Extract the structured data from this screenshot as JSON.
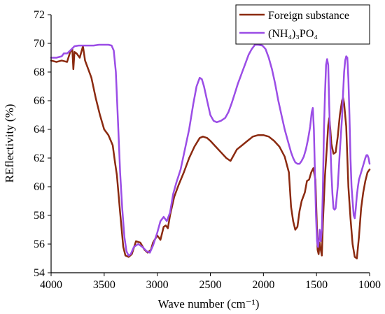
{
  "chart_data": {
    "type": "line",
    "xlabel": "Wave number (cm⁻¹)",
    "ylabel": "REflectivity (%)",
    "xlim": [
      4000,
      1000
    ],
    "ylim": [
      54,
      72
    ],
    "x_ticks": [
      4000,
      3500,
      3000,
      2500,
      2000,
      1500,
      1000
    ],
    "y_ticks": [
      54,
      56,
      58,
      60,
      62,
      64,
      66,
      68,
      70,
      72
    ],
    "grid": false,
    "legend_position": "top-right",
    "series": [
      {
        "name": "Foreign substance",
        "color": "#8b2a10",
        "points": [
          [
            4000,
            68.8
          ],
          [
            3950,
            68.7
          ],
          [
            3900,
            68.8
          ],
          [
            3850,
            68.7
          ],
          [
            3820,
            69.4
          ],
          [
            3800,
            69.6
          ],
          [
            3790,
            68.2
          ],
          [
            3780,
            69.4
          ],
          [
            3760,
            69.3
          ],
          [
            3730,
            69.0
          ],
          [
            3700,
            69.8
          ],
          [
            3680,
            68.8
          ],
          [
            3650,
            68.2
          ],
          [
            3620,
            67.6
          ],
          [
            3580,
            66.2
          ],
          [
            3540,
            65.0
          ],
          [
            3500,
            64.0
          ],
          [
            3460,
            63.6
          ],
          [
            3420,
            62.9
          ],
          [
            3400,
            61.8
          ],
          [
            3380,
            60.8
          ],
          [
            3350,
            58.2
          ],
          [
            3320,
            55.8
          ],
          [
            3300,
            55.2
          ],
          [
            3270,
            55.1
          ],
          [
            3240,
            55.3
          ],
          [
            3200,
            56.2
          ],
          [
            3160,
            56.1
          ],
          [
            3120,
            55.6
          ],
          [
            3090,
            55.4
          ],
          [
            3060,
            55.6
          ],
          [
            3040,
            56.1
          ],
          [
            3000,
            56.6
          ],
          [
            2970,
            56.3
          ],
          [
            2940,
            57.2
          ],
          [
            2920,
            57.3
          ],
          [
            2900,
            57.1
          ],
          [
            2880,
            58.0
          ],
          [
            2840,
            59.3
          ],
          [
            2800,
            60.1
          ],
          [
            2750,
            61.0
          ],
          [
            2700,
            62.0
          ],
          [
            2650,
            62.8
          ],
          [
            2600,
            63.4
          ],
          [
            2570,
            63.5
          ],
          [
            2530,
            63.4
          ],
          [
            2500,
            63.2
          ],
          [
            2450,
            62.8
          ],
          [
            2400,
            62.4
          ],
          [
            2350,
            62.0
          ],
          [
            2310,
            61.8
          ],
          [
            2280,
            62.2
          ],
          [
            2250,
            62.6
          ],
          [
            2200,
            62.9
          ],
          [
            2150,
            63.2
          ],
          [
            2100,
            63.5
          ],
          [
            2050,
            63.6
          ],
          [
            2000,
            63.6
          ],
          [
            1950,
            63.5
          ],
          [
            1900,
            63.2
          ],
          [
            1850,
            62.8
          ],
          [
            1800,
            62.1
          ],
          [
            1760,
            61.0
          ],
          [
            1740,
            58.6
          ],
          [
            1720,
            57.6
          ],
          [
            1700,
            57.0
          ],
          [
            1680,
            57.2
          ],
          [
            1660,
            58.3
          ],
          [
            1640,
            59.0
          ],
          [
            1610,
            59.6
          ],
          [
            1590,
            60.4
          ],
          [
            1570,
            60.5
          ],
          [
            1550,
            61.0
          ],
          [
            1530,
            61.3
          ],
          [
            1510,
            60.5
          ],
          [
            1500,
            58.0
          ],
          [
            1490,
            55.6
          ],
          [
            1480,
            55.3
          ],
          [
            1470,
            56.1
          ],
          [
            1460,
            55.6
          ],
          [
            1450,
            55.2
          ],
          [
            1440,
            57.5
          ],
          [
            1420,
            60.8
          ],
          [
            1400,
            63.0
          ],
          [
            1390,
            64.3
          ],
          [
            1380,
            64.8
          ],
          [
            1370,
            64.0
          ],
          [
            1360,
            63.0
          ],
          [
            1340,
            62.3
          ],
          [
            1320,
            62.4
          ],
          [
            1300,
            63.5
          ],
          [
            1280,
            65.0
          ],
          [
            1260,
            66.0
          ],
          [
            1250,
            66.2
          ],
          [
            1240,
            65.8
          ],
          [
            1220,
            64.2
          ],
          [
            1200,
            60.0
          ],
          [
            1180,
            57.8
          ],
          [
            1160,
            56.0
          ],
          [
            1140,
            55.1
          ],
          [
            1120,
            55.0
          ],
          [
            1100,
            56.5
          ],
          [
            1080,
            58.5
          ],
          [
            1060,
            59.6
          ],
          [
            1040,
            60.4
          ],
          [
            1020,
            61.0
          ],
          [
            1000,
            61.2
          ]
        ]
      },
      {
        "name": "(NH₄)₃PO₄",
        "color": "#9b4de6",
        "points": [
          [
            4000,
            69.0
          ],
          [
            3950,
            69.0
          ],
          [
            3900,
            69.1
          ],
          [
            3880,
            69.3
          ],
          [
            3850,
            69.3
          ],
          [
            3820,
            69.5
          ],
          [
            3780,
            69.8
          ],
          [
            3740,
            69.85
          ],
          [
            3700,
            69.85
          ],
          [
            3650,
            69.85
          ],
          [
            3600,
            69.85
          ],
          [
            3550,
            69.9
          ],
          [
            3500,
            69.9
          ],
          [
            3460,
            69.9
          ],
          [
            3430,
            69.85
          ],
          [
            3410,
            69.5
          ],
          [
            3390,
            68.0
          ],
          [
            3370,
            64.5
          ],
          [
            3350,
            61.0
          ],
          [
            3330,
            58.5
          ],
          [
            3310,
            56.5
          ],
          [
            3290,
            55.5
          ],
          [
            3270,
            55.2
          ],
          [
            3250,
            55.3
          ],
          [
            3220,
            55.8
          ],
          [
            3180,
            56.0
          ],
          [
            3140,
            55.8
          ],
          [
            3100,
            55.5
          ],
          [
            3070,
            55.4
          ],
          [
            3040,
            55.9
          ],
          [
            3000,
            56.8
          ],
          [
            2970,
            57.6
          ],
          [
            2940,
            57.9
          ],
          [
            2910,
            57.6
          ],
          [
            2880,
            58.2
          ],
          [
            2850,
            59.5
          ],
          [
            2820,
            60.3
          ],
          [
            2780,
            61.2
          ],
          [
            2740,
            62.6
          ],
          [
            2700,
            64.0
          ],
          [
            2660,
            65.8
          ],
          [
            2630,
            67.0
          ],
          [
            2600,
            67.6
          ],
          [
            2580,
            67.5
          ],
          [
            2560,
            67.0
          ],
          [
            2530,
            66.0
          ],
          [
            2500,
            65.0
          ],
          [
            2470,
            64.6
          ],
          [
            2440,
            64.5
          ],
          [
            2400,
            64.6
          ],
          [
            2360,
            64.8
          ],
          [
            2330,
            65.2
          ],
          [
            2300,
            65.8
          ],
          [
            2270,
            66.5
          ],
          [
            2240,
            67.2
          ],
          [
            2220,
            67.6
          ],
          [
            2200,
            68.0
          ],
          [
            2170,
            68.6
          ],
          [
            2140,
            69.2
          ],
          [
            2110,
            69.6
          ],
          [
            2080,
            69.9
          ],
          [
            2050,
            69.9
          ],
          [
            2010,
            69.85
          ],
          [
            1980,
            69.6
          ],
          [
            1950,
            69.0
          ],
          [
            1920,
            68.2
          ],
          [
            1890,
            67.2
          ],
          [
            1860,
            66.0
          ],
          [
            1830,
            65.0
          ],
          [
            1800,
            64.0
          ],
          [
            1770,
            63.2
          ],
          [
            1740,
            62.4
          ],
          [
            1720,
            62.0
          ],
          [
            1700,
            61.7
          ],
          [
            1680,
            61.6
          ],
          [
            1660,
            61.6
          ],
          [
            1640,
            61.8
          ],
          [
            1620,
            62.1
          ],
          [
            1600,
            62.6
          ],
          [
            1580,
            63.3
          ],
          [
            1560,
            64.2
          ],
          [
            1545,
            65.2
          ],
          [
            1535,
            65.5
          ],
          [
            1525,
            64.0
          ],
          [
            1515,
            61.0
          ],
          [
            1505,
            58.0
          ],
          [
            1495,
            56.2
          ],
          [
            1485,
            55.8
          ],
          [
            1475,
            56.5
          ],
          [
            1470,
            57.0
          ],
          [
            1460,
            56.2
          ],
          [
            1450,
            57.0
          ],
          [
            1440,
            60.0
          ],
          [
            1430,
            64.0
          ],
          [
            1420,
            66.5
          ],
          [
            1410,
            68.5
          ],
          [
            1400,
            68.9
          ],
          [
            1390,
            68.5
          ],
          [
            1380,
            65.5
          ],
          [
            1370,
            63.0
          ],
          [
            1360,
            61.0
          ],
          [
            1350,
            59.5
          ],
          [
            1340,
            58.5
          ],
          [
            1330,
            58.4
          ],
          [
            1320,
            58.5
          ],
          [
            1300,
            60.0
          ],
          [
            1280,
            62.5
          ],
          [
            1260,
            64.8
          ],
          [
            1250,
            66.5
          ],
          [
            1240,
            68.0
          ],
          [
            1230,
            68.8
          ],
          [
            1220,
            69.1
          ],
          [
            1210,
            69.0
          ],
          [
            1200,
            67.5
          ],
          [
            1190,
            65.0
          ],
          [
            1180,
            62.0
          ],
          [
            1170,
            60.0
          ],
          [
            1160,
            59.0
          ],
          [
            1150,
            58.0
          ],
          [
            1140,
            57.8
          ],
          [
            1130,
            58.5
          ],
          [
            1120,
            59.4
          ],
          [
            1110,
            60.0
          ],
          [
            1100,
            60.5
          ],
          [
            1080,
            61.0
          ],
          [
            1060,
            61.5
          ],
          [
            1040,
            62.0
          ],
          [
            1030,
            62.2
          ],
          [
            1020,
            62.2
          ],
          [
            1010,
            62.0
          ],
          [
            1000,
            61.6
          ]
        ]
      }
    ]
  }
}
